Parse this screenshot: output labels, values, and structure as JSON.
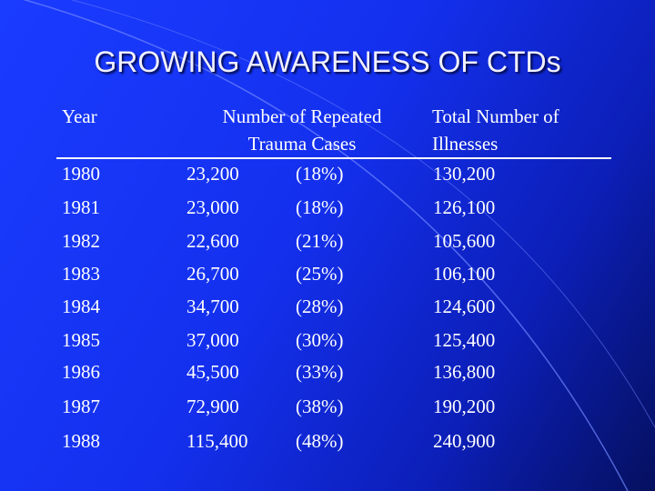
{
  "title": "GROWING AWARENESS OF CTDs",
  "table": {
    "headers": {
      "year": "Year",
      "repeated_trauma": [
        "Number of Repeated",
        "Trauma Cases"
      ],
      "total_illnesses": [
        "Total Number of",
        "Illnesses"
      ]
    },
    "rows": [
      {
        "year": "1980",
        "cases": "23,200",
        "pct": "(18%)",
        "total": "130,200"
      },
      {
        "year": "1981",
        "cases": "23,000",
        "pct": "(18%)",
        "total": "126,100"
      },
      {
        "year": "1982",
        "cases": "22,600",
        "pct": "(21%)",
        "total": "105,600"
      },
      {
        "year": "1983",
        "cases": "26,700",
        "pct": "(25%)",
        "total": "106,100"
      },
      {
        "year": "1984",
        "cases": "34,700",
        "pct": "(28%)",
        "total": "124,600"
      },
      {
        "year": "1985",
        "cases": "37,000",
        "pct": "(30%)",
        "total": "125,400"
      },
      {
        "year": "1986",
        "cases": "45,500",
        "pct": "(33%)",
        "total": "136,800"
      },
      {
        "year": "1987",
        "cases": "72,900",
        "pct": "(38%)",
        "total": "190,200"
      },
      {
        "year": "1988",
        "cases": "115,400",
        "pct": "(48%)",
        "total": "240,900"
      }
    ]
  },
  "colors": {
    "background_top_left": "#1a3cff",
    "background_bottom_right": "#05105e",
    "text": "#ffffff",
    "arc": "#6f86ff"
  }
}
